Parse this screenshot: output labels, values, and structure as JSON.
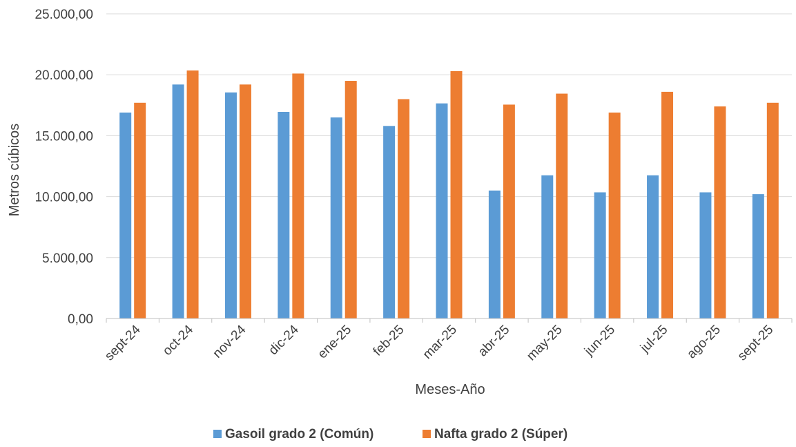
{
  "chart_data": {
    "type": "bar",
    "title": "",
    "xlabel": "Meses-Año",
    "ylabel": "Metros cúbicos",
    "ylim": [
      0,
      25000
    ],
    "y_ticks": [
      0,
      5000,
      10000,
      15000,
      20000,
      25000
    ],
    "y_tick_labels": [
      "0,00",
      "5.000,00",
      "10.000,00",
      "15.000,00",
      "20.000,00",
      "25.000,00"
    ],
    "grid": true,
    "legend_position": "bottom",
    "categories": [
      "sept-24",
      "oct-24",
      "nov-24",
      "dic-24",
      "ene-25",
      "feb-25",
      "mar-25",
      "abr-25",
      "may-25",
      "jun-25",
      "jul-25",
      "ago-25",
      "sept-25"
    ],
    "series": [
      {
        "name": "Gasoil grado 2 (Común)",
        "color": "#5B9BD5",
        "values": [
          16900,
          19200,
          18550,
          16950,
          16500,
          15800,
          17650,
          10500,
          11750,
          10350,
          11750,
          10350,
          10200
        ]
      },
      {
        "name": "Nafta grado 2 (Súper)",
        "color": "#ED7D31",
        "values": [
          17700,
          20350,
          19200,
          20100,
          19500,
          18000,
          20300,
          17550,
          18450,
          16900,
          18600,
          17400,
          17700
        ]
      }
    ]
  }
}
